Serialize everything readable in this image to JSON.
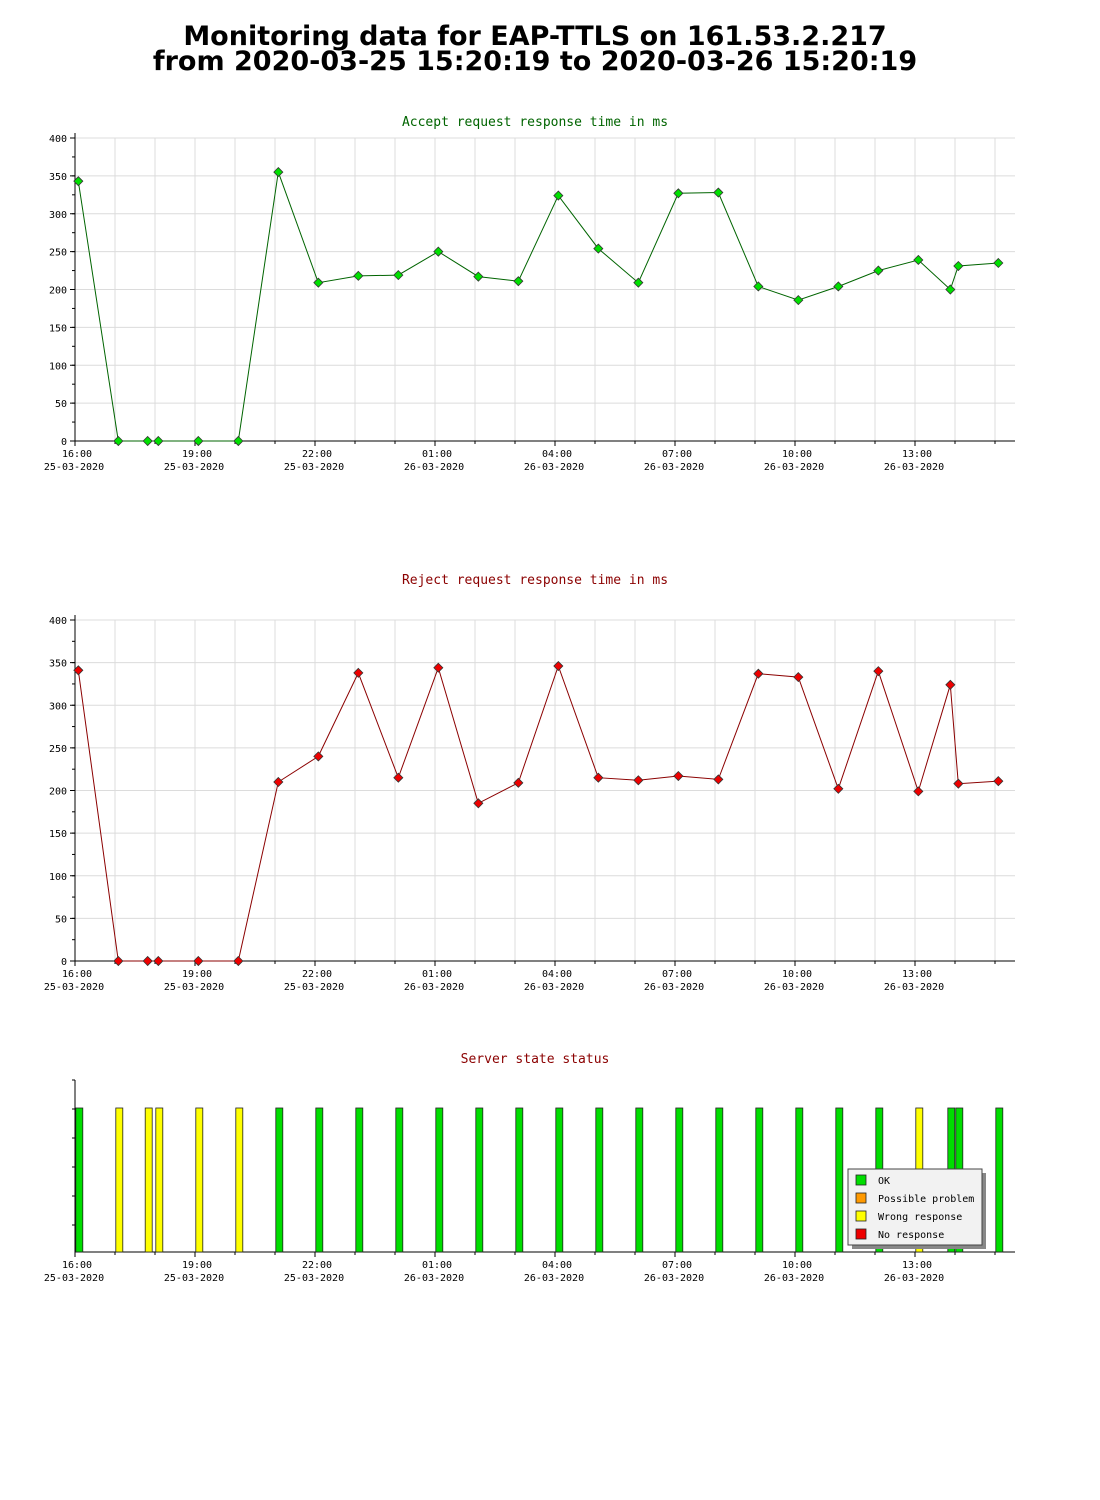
{
  "header": {
    "title_line1": "Monitoring data for EAP-TTLS on 161.53.2.217",
    "title_line2": "from 2020-03-25 15:20:19 to 2020-03-26 15:20:19"
  },
  "colors": {
    "accept_line": "#006400",
    "accept_marker": "#00e000",
    "reject_line": "#8b0000",
    "reject_marker": "#ee0000",
    "status_ok": "#00dd00",
    "status_possible_problem": "#ff9900",
    "status_wrong_response": "#ffff00",
    "status_no_response": "#ee0000"
  },
  "chart_data": [
    {
      "type": "line",
      "title": "Accept request response time in ms",
      "xlabel": "",
      "ylabel": "",
      "ylim": [
        0,
        400
      ],
      "xlim": [
        "2020-03-25 16:00",
        "2020-03-26 15:30"
      ],
      "yticks": [
        "0",
        "50",
        "100",
        "150",
        "200",
        "250",
        "300",
        "350",
        "400"
      ],
      "xticks": [
        {
          "time": "16:00",
          "date": "25-03-2020"
        },
        {
          "time": "19:00",
          "date": "25-03-2020"
        },
        {
          "time": "22:00",
          "date": "25-03-2020"
        },
        {
          "time": "01:00",
          "date": "26-03-2020"
        },
        {
          "time": "04:00",
          "date": "26-03-2020"
        },
        {
          "time": "07:00",
          "date": "26-03-2020"
        },
        {
          "time": "10:00",
          "date": "26-03-2020"
        },
        {
          "time": "13:00",
          "date": "26-03-2020"
        }
      ],
      "grid": true,
      "x": [
        "2020-03-25 16:05",
        "2020-03-25 17:05",
        "2020-03-25 17:49",
        "2020-03-25 18:05",
        "2020-03-25 19:05",
        "2020-03-25 20:05",
        "2020-03-25 21:05",
        "2020-03-25 22:05",
        "2020-03-25 23:05",
        "2020-03-26 00:05",
        "2020-03-26 01:05",
        "2020-03-26 02:05",
        "2020-03-26 03:05",
        "2020-03-26 04:05",
        "2020-03-26 05:05",
        "2020-03-26 06:05",
        "2020-03-26 07:05",
        "2020-03-26 08:05",
        "2020-03-26 09:05",
        "2020-03-26 10:05",
        "2020-03-26 11:05",
        "2020-03-26 12:05",
        "2020-03-26 13:05",
        "2020-03-26 13:53",
        "2020-03-26 14:05",
        "2020-03-26 15:05"
      ],
      "values": [
        343,
        0,
        0,
        0,
        0,
        0,
        355,
        209,
        218,
        219,
        250,
        217,
        211,
        324,
        254,
        209,
        327,
        328,
        204,
        186,
        204,
        225,
        239,
        200,
        231,
        235
      ]
    },
    {
      "type": "line",
      "title": "Reject request response time in ms",
      "xlabel": "",
      "ylabel": "",
      "ylim": [
        0,
        400
      ],
      "xlim": [
        "2020-03-25 16:00",
        "2020-03-26 15:30"
      ],
      "yticks": [
        "0",
        "50",
        "100",
        "150",
        "200",
        "250",
        "300",
        "350",
        "400"
      ],
      "xticks": [
        {
          "time": "16:00",
          "date": "25-03-2020"
        },
        {
          "time": "19:00",
          "date": "25-03-2020"
        },
        {
          "time": "22:00",
          "date": "25-03-2020"
        },
        {
          "time": "01:00",
          "date": "26-03-2020"
        },
        {
          "time": "04:00",
          "date": "26-03-2020"
        },
        {
          "time": "07:00",
          "date": "26-03-2020"
        },
        {
          "time": "10:00",
          "date": "26-03-2020"
        },
        {
          "time": "13:00",
          "date": "26-03-2020"
        }
      ],
      "grid": true,
      "x": [
        "2020-03-25 16:05",
        "2020-03-25 17:05",
        "2020-03-25 17:49",
        "2020-03-25 18:05",
        "2020-03-25 19:05",
        "2020-03-25 20:05",
        "2020-03-25 21:05",
        "2020-03-25 22:05",
        "2020-03-25 23:05",
        "2020-03-26 00:05",
        "2020-03-26 01:05",
        "2020-03-26 02:05",
        "2020-03-26 03:05",
        "2020-03-26 04:05",
        "2020-03-26 05:05",
        "2020-03-26 06:05",
        "2020-03-26 07:05",
        "2020-03-26 08:05",
        "2020-03-26 09:05",
        "2020-03-26 10:05",
        "2020-03-26 11:05",
        "2020-03-26 12:05",
        "2020-03-26 13:05",
        "2020-03-26 13:53",
        "2020-03-26 14:05",
        "2020-03-26 15:05"
      ],
      "values": [
        341,
        0,
        0,
        0,
        0,
        0,
        210,
        240,
        338,
        215,
        344,
        185,
        209,
        346,
        215,
        212,
        217,
        213,
        337,
        333,
        202,
        340,
        199,
        324,
        208,
        211
      ]
    },
    {
      "type": "bar",
      "title": "Server state status",
      "xlabel": "",
      "ylabel": "",
      "xlim": [
        "2020-03-25 16:00",
        "2020-03-26 15:30"
      ],
      "xticks": [
        {
          "time": "16:00",
          "date": "25-03-2020"
        },
        {
          "time": "19:00",
          "date": "25-03-2020"
        },
        {
          "time": "22:00",
          "date": "25-03-2020"
        },
        {
          "time": "01:00",
          "date": "26-03-2020"
        },
        {
          "time": "04:00",
          "date": "26-03-2020"
        },
        {
          "time": "07:00",
          "date": "26-03-2020"
        },
        {
          "time": "10:00",
          "date": "26-03-2020"
        },
        {
          "time": "13:00",
          "date": "26-03-2020"
        }
      ],
      "legend": {
        "placement": "bottom-right",
        "entries": [
          {
            "label": "OK",
            "status": "ok"
          },
          {
            "label": "Possible problem",
            "status": "possible_problem"
          },
          {
            "label": "Wrong response",
            "status": "wrong_response"
          },
          {
            "label": "No response",
            "status": "no_response"
          }
        ]
      },
      "x": [
        "2020-03-25 16:05",
        "2020-03-25 17:05",
        "2020-03-25 17:49",
        "2020-03-25 18:05",
        "2020-03-25 19:05",
        "2020-03-25 20:05",
        "2020-03-25 21:05",
        "2020-03-25 22:05",
        "2020-03-25 23:05",
        "2020-03-26 00:05",
        "2020-03-26 01:05",
        "2020-03-26 02:05",
        "2020-03-26 03:05",
        "2020-03-26 04:05",
        "2020-03-26 05:05",
        "2020-03-26 06:05",
        "2020-03-26 07:05",
        "2020-03-26 08:05",
        "2020-03-26 09:05",
        "2020-03-26 10:05",
        "2020-03-26 11:05",
        "2020-03-26 12:05",
        "2020-03-26 13:05",
        "2020-03-26 13:53",
        "2020-03-26 14:05",
        "2020-03-26 15:05"
      ],
      "status": [
        "ok",
        "wrong_response",
        "wrong_response",
        "wrong_response",
        "wrong_response",
        "wrong_response",
        "ok",
        "ok",
        "ok",
        "ok",
        "ok",
        "ok",
        "ok",
        "ok",
        "ok",
        "ok",
        "ok",
        "ok",
        "ok",
        "ok",
        "ok",
        "ok",
        "wrong_response",
        "ok",
        "ok",
        "ok"
      ]
    }
  ]
}
